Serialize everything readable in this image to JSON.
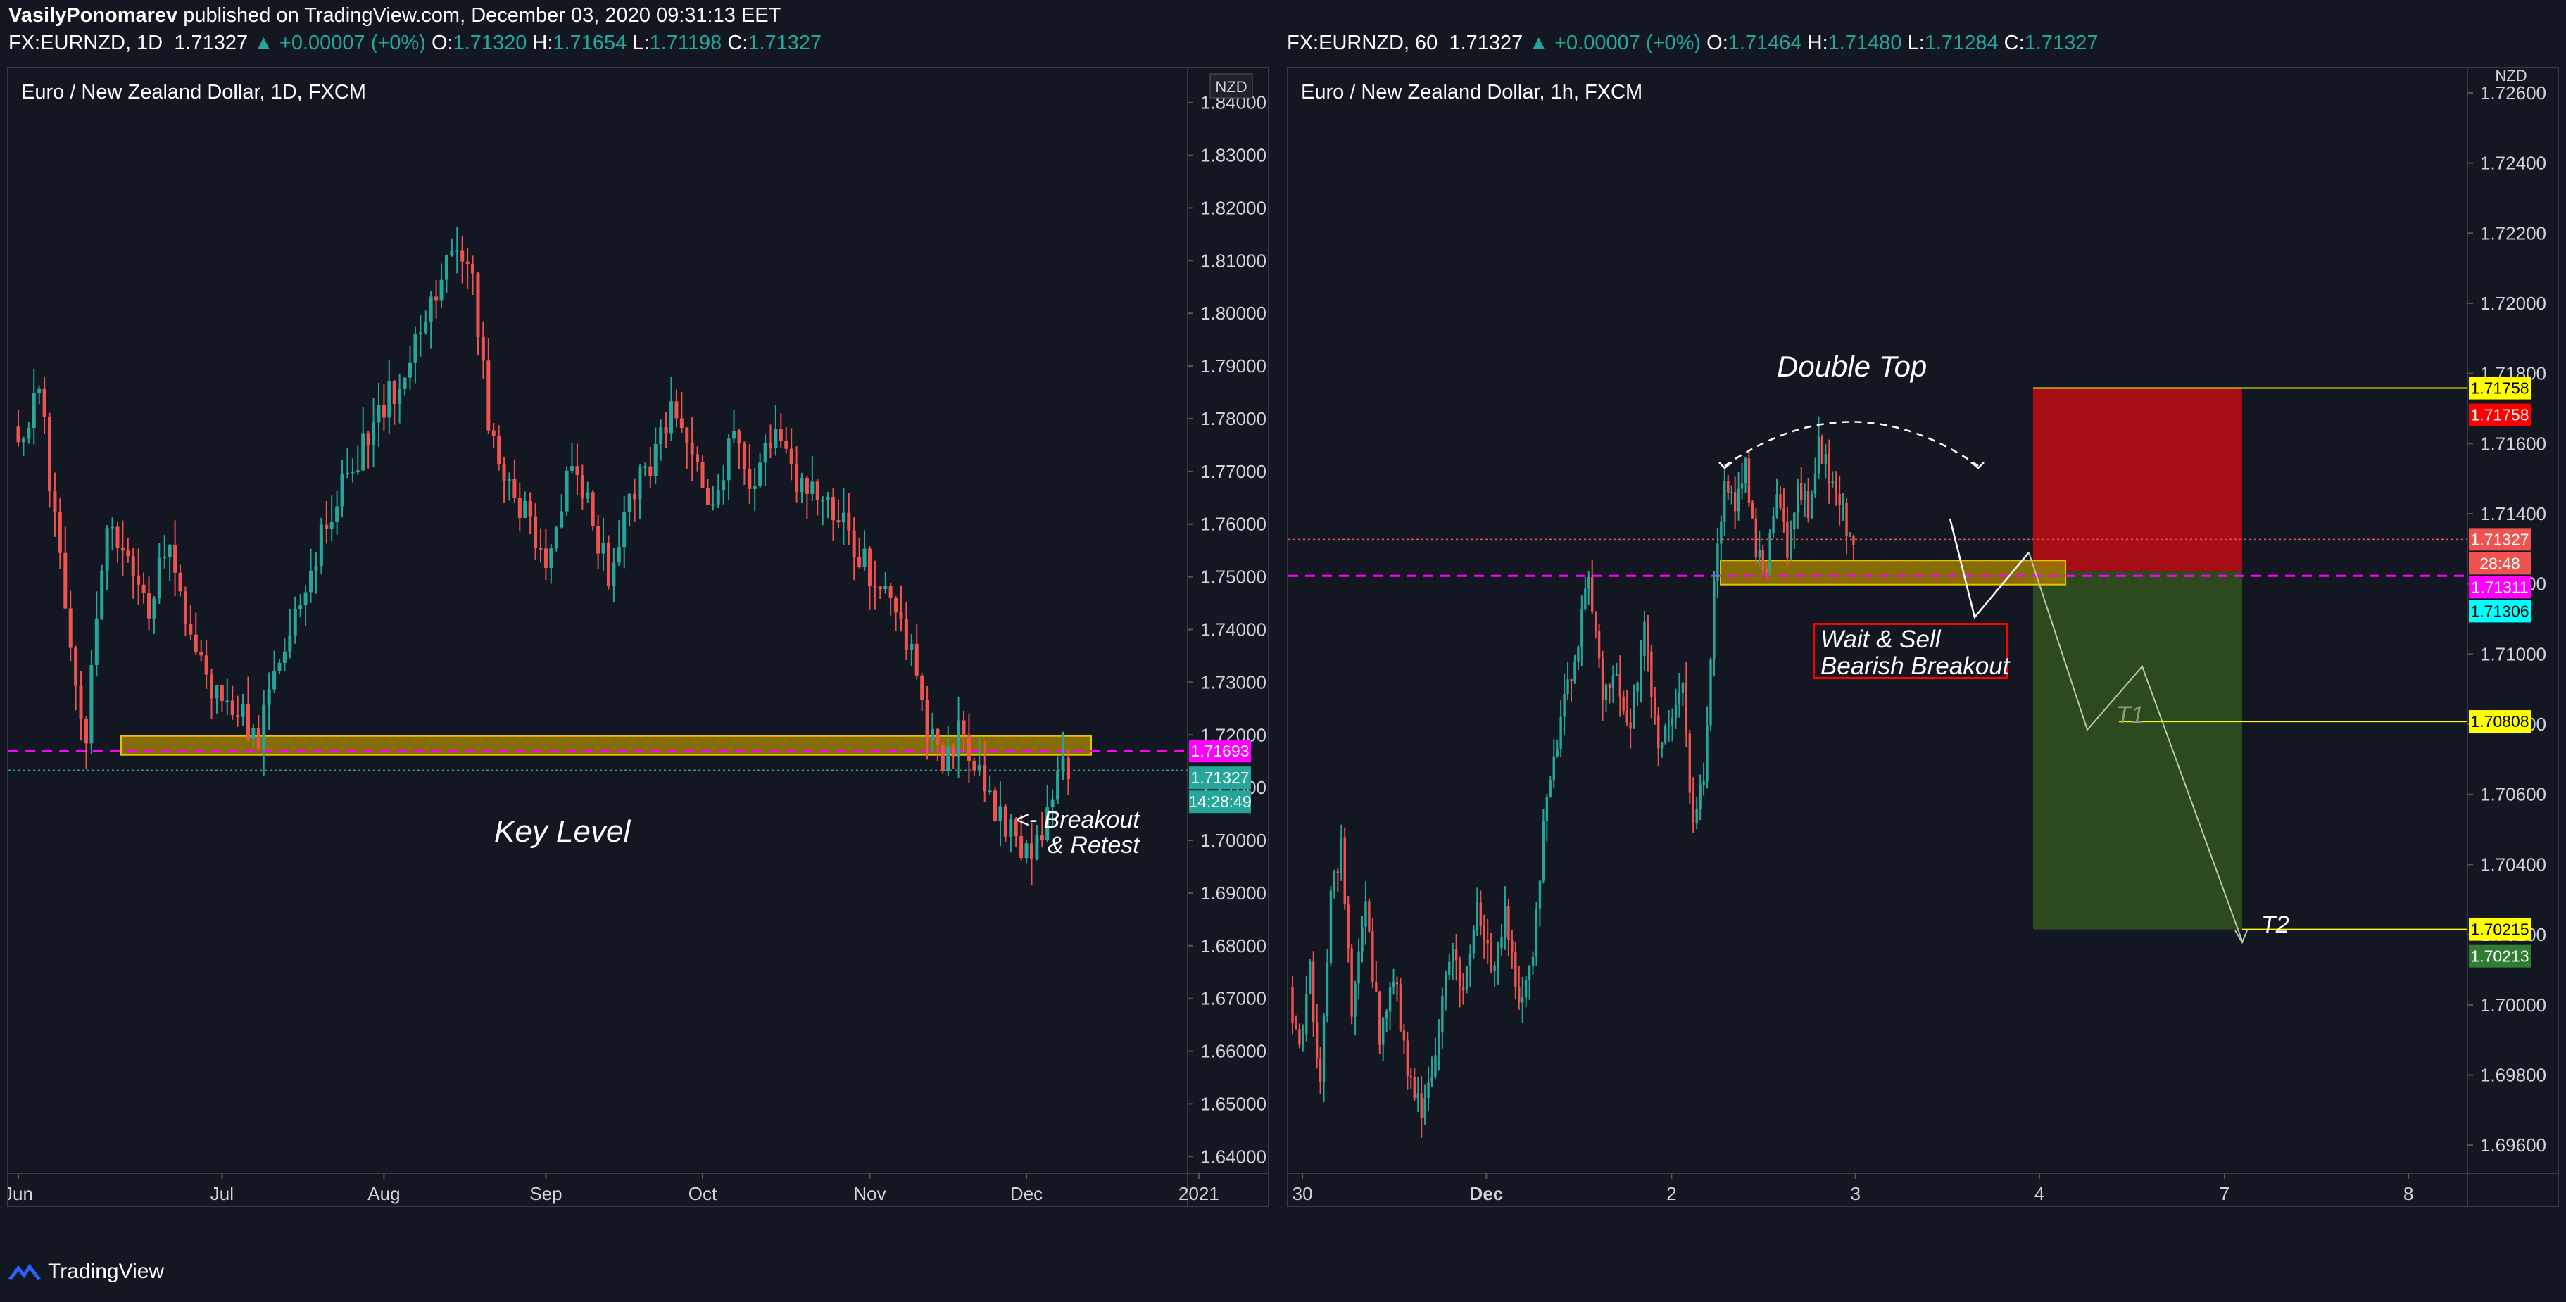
{
  "header": {
    "publisher_line": {
      "user": "VasilyPonomarev",
      "rest": " published on TradingView.com, December 03, 2020 09:31:13 EET"
    },
    "left_ticker": {
      "symbol": "FX:EURNZD, 1D",
      "last": "1.71327",
      "change": "▲ +0.00007 (+0%)",
      "o": "1.71320",
      "h": "1.71654",
      "l": "1.71198",
      "c": "1.71327"
    },
    "right_ticker": {
      "symbol": "FX:EURNZD, 60",
      "last": "1.71327",
      "change": "▲ +0.00007 (+0%)",
      "o": "1.71464",
      "h": "1.71480",
      "l": "1.71284",
      "c": "1.71327"
    }
  },
  "footer": {
    "brand": "TradingView"
  },
  "colors": {
    "up": "#26a69a",
    "down": "#ef5350",
    "zone": "#9c7a00",
    "magenta": "#ff00ff",
    "red_box": "#a50e14",
    "green_box": "#2d4a1f",
    "target_yellow": "#ffff00"
  },
  "chart_data": [
    {
      "type": "candlestick",
      "title": "Euro / New Zealand Dollar, 1D, FXCM",
      "currency_tag": "NZD",
      "x_ticks": [
        "Jun",
        "Jul",
        "Aug",
        "Sep",
        "Oct",
        "Nov",
        "Dec",
        "2021"
      ],
      "y_ticks": [
        "1.84000",
        "1.83000",
        "1.82000",
        "1.81000",
        "1.80000",
        "1.79000",
        "1.78000",
        "1.77000",
        "1.76000",
        "1.75000",
        "1.74000",
        "1.73000",
        "1.72000",
        "1.71000",
        "1.70000",
        "1.69000",
        "1.68000",
        "1.67000",
        "1.66000",
        "1.65000",
        "1.64000"
      ],
      "ylim": [
        1.6355,
        1.8465
      ],
      "key_level_zone": [
        1.7162,
        1.7198
      ],
      "magenta_line": 1.71693,
      "price_labels": [
        {
          "value": "1.71693",
          "color": "#ff00ff"
        },
        {
          "value": "1.71327",
          "color": "#26a69a"
        },
        {
          "value": "14:28:49",
          "color": "#26a69a"
        }
      ],
      "annotations": {
        "key_level": "Key Level",
        "breakout": "<- Breakout\n& Retest"
      },
      "anchors": [
        [
          0,
          1.7785
        ],
        [
          3,
          1.778
        ],
        [
          5,
          1.786
        ],
        [
          9,
          1.752
        ],
        [
          12,
          1.73
        ],
        [
          14,
          1.72
        ],
        [
          18,
          1.761
        ],
        [
          22,
          1.754
        ],
        [
          26,
          1.743
        ],
        [
          30,
          1.758
        ],
        [
          35,
          1.735
        ],
        [
          40,
          1.726
        ],
        [
          44,
          1.724
        ],
        [
          47,
          1.719
        ],
        [
          50,
          1.73
        ],
        [
          56,
          1.75
        ],
        [
          62,
          1.765
        ],
        [
          68,
          1.776
        ],
        [
          74,
          1.788
        ],
        [
          80,
          1.804
        ],
        [
          84,
          1.81
        ],
        [
          88,
          1.806
        ],
        [
          91,
          1.78
        ],
        [
          94,
          1.77
        ],
        [
          98,
          1.762
        ],
        [
          102,
          1.752
        ],
        [
          106,
          1.77
        ],
        [
          110,
          1.764
        ],
        [
          114,
          1.75
        ],
        [
          118,
          1.765
        ],
        [
          122,
          1.772
        ],
        [
          126,
          1.781
        ],
        [
          130,
          1.776
        ],
        [
          134,
          1.762
        ],
        [
          138,
          1.78
        ],
        [
          142,
          1.765
        ],
        [
          146,
          1.78
        ],
        [
          150,
          1.769
        ],
        [
          154,
          1.765
        ],
        [
          158,
          1.761
        ],
        [
          163,
          1.753
        ],
        [
          166,
          1.747
        ],
        [
          169,
          1.746
        ],
        [
          172,
          1.735
        ],
        [
          175,
          1.722
        ],
        [
          178,
          1.716
        ],
        [
          181,
          1.72
        ],
        [
          185,
          1.712
        ],
        [
          189,
          1.704
        ],
        [
          192,
          1.7
        ],
        [
          195,
          1.698
        ],
        [
          198,
          1.706
        ],
        [
          201,
          1.713
        ]
      ],
      "candle_count": 202,
      "tick_candle_index": [
        0,
        39,
        70,
        101,
        131,
        163,
        193,
        226
      ]
    },
    {
      "type": "candlestick",
      "title": "Euro / New Zealand Dollar, 1h, FXCM",
      "currency_tag": "NZD",
      "x_ticks": [
        "30",
        "Dec",
        "2",
        "3",
        "4",
        "7",
        "8"
      ],
      "y_ticks": [
        "1.72600",
        "1.72400",
        "1.72200",
        "1.72000",
        "1.71800",
        "1.71600",
        "1.71400",
        "1.71200",
        "1.71000",
        "1.70800",
        "1.70600",
        "1.70400",
        "1.70200",
        "1.70000",
        "1.69800",
        "1.69600"
      ],
      "ylim": [
        1.695,
        1.7267
      ],
      "resistance_zone": [
        1.7121,
        1.71255
      ],
      "magenta_line": 1.71223,
      "double_top_label": "Double Top",
      "trade_label": "Wait & Sell\nBearish Breakout",
      "targets": {
        "t1": "T1",
        "t2": "T2"
      },
      "levels": {
        "stop": 1.71758,
        "entry": 1.71235,
        "t1": 1.70808,
        "t2": 1.70215
      },
      "price_labels": [
        {
          "value": "1.71758",
          "color": "#ffff00"
        },
        {
          "value": "1.71758",
          "color": "#ff0000"
        },
        {
          "value": "1.71327",
          "color": "#ef5350"
        },
        {
          "value": "28:48",
          "color": "#ef5350"
        },
        {
          "value": "1.71311",
          "color": "#ff00ff"
        },
        {
          "value": "1.71306",
          "color": "#00ffff"
        },
        {
          "value": "1.70808",
          "color": "#ffff00"
        },
        {
          "value": "1.70215",
          "color": "#ffff00"
        },
        {
          "value": "1.70213",
          "color": "#2e7d32"
        }
      ],
      "anchors": [
        [
          0,
          1.7005
        ],
        [
          3,
          1.6985
        ],
        [
          6,
          1.701
        ],
        [
          9,
          1.6975
        ],
        [
          12,
          1.703
        ],
        [
          15,
          1.7045
        ],
        [
          18,
          1.7
        ],
        [
          22,
          1.703
        ],
        [
          26,
          1.699
        ],
        [
          30,
          1.701
        ],
        [
          34,
          1.698
        ],
        [
          38,
          1.697
        ],
        [
          42,
          1.6985
        ],
        [
          46,
          1.7015
        ],
        [
          50,
          1.7005
        ],
        [
          54,
          1.703
        ],
        [
          58,
          1.701
        ],
        [
          62,
          1.7025
        ],
        [
          66,
          1.7
        ],
        [
          70,
          1.7015
        ],
        [
          74,
          1.706
        ],
        [
          78,
          1.708
        ],
        [
          82,
          1.71
        ],
        [
          86,
          1.712
        ],
        [
          90,
          1.709
        ],
        [
          94,
          1.7095
        ],
        [
          98,
          1.708
        ],
        [
          102,
          1.711
        ],
        [
          106,
          1.707
        ],
        [
          110,
          1.7085
        ],
        [
          113,
          1.709
        ],
        [
          116,
          1.705
        ],
        [
          119,
          1.7065
        ],
        [
          122,
          1.712
        ],
        [
          125,
          1.715
        ],
        [
          128,
          1.714
        ],
        [
          131,
          1.7155
        ],
        [
          134,
          1.713
        ],
        [
          137,
          1.7125
        ],
        [
          140,
          1.7145
        ],
        [
          143,
          1.713
        ],
        [
          146,
          1.715
        ],
        [
          149,
          1.714
        ],
        [
          152,
          1.716
        ],
        [
          155,
          1.715
        ],
        [
          158,
          1.7145
        ],
        [
          161,
          1.7133
        ]
      ],
      "candle_count": 162,
      "x_tick_positions": [
        0.012,
        0.168,
        0.325,
        0.481,
        0.637,
        0.794,
        0.95
      ]
    }
  ]
}
